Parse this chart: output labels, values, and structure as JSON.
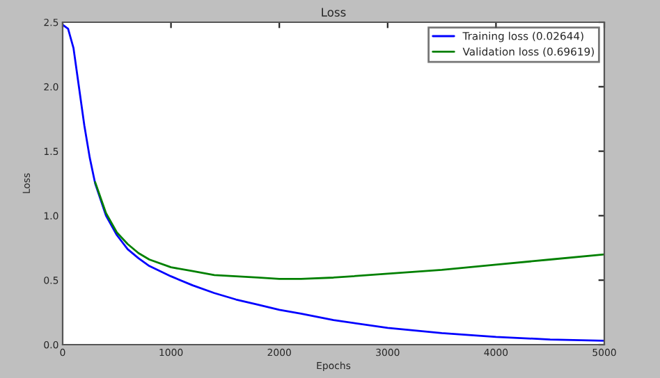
{
  "chart_data": {
    "type": "line",
    "title": "Loss",
    "xlabel": "Epochs",
    "ylabel": "Loss",
    "x": [
      0,
      50,
      100,
      150,
      200,
      250,
      300,
      400,
      500,
      600,
      700,
      800,
      1000,
      1200,
      1400,
      1600,
      1800,
      2000,
      2200,
      2500,
      3000,
      3500,
      4000,
      4500,
      5000
    ],
    "series": [
      {
        "name": "Training loss (0.02644)",
        "color": "#0000ff",
        "values": [
          2.48,
          2.45,
          2.3,
          2.0,
          1.7,
          1.45,
          1.25,
          1.0,
          0.85,
          0.74,
          0.67,
          0.61,
          0.53,
          0.46,
          0.4,
          0.35,
          0.31,
          0.27,
          0.24,
          0.19,
          0.13,
          0.09,
          0.06,
          0.04,
          0.03
        ]
      },
      {
        "name": "Validation loss (0.69619)",
        "color": "#008000",
        "values": [
          null,
          null,
          null,
          null,
          null,
          null,
          1.26,
          1.02,
          0.87,
          0.78,
          0.71,
          0.66,
          0.6,
          0.57,
          0.54,
          0.53,
          0.52,
          0.51,
          0.51,
          0.52,
          0.55,
          0.58,
          0.62,
          0.66,
          0.7
        ]
      }
    ],
    "xlim": [
      0,
      5000
    ],
    "ylim": [
      0,
      2.5
    ],
    "xticks": [
      0,
      1000,
      2000,
      3000,
      4000,
      5000
    ],
    "yticks": [
      {
        "value": 0,
        "label": "0.0"
      },
      {
        "value": 0.5,
        "label": "0.5"
      },
      {
        "value": 1,
        "label": "1.0"
      },
      {
        "value": 1.5,
        "label": "1.5"
      },
      {
        "value": 2,
        "label": "2.0"
      },
      {
        "value": 2.5,
        "label": "2.5"
      }
    ],
    "grid": false,
    "legend": "top right"
  }
}
